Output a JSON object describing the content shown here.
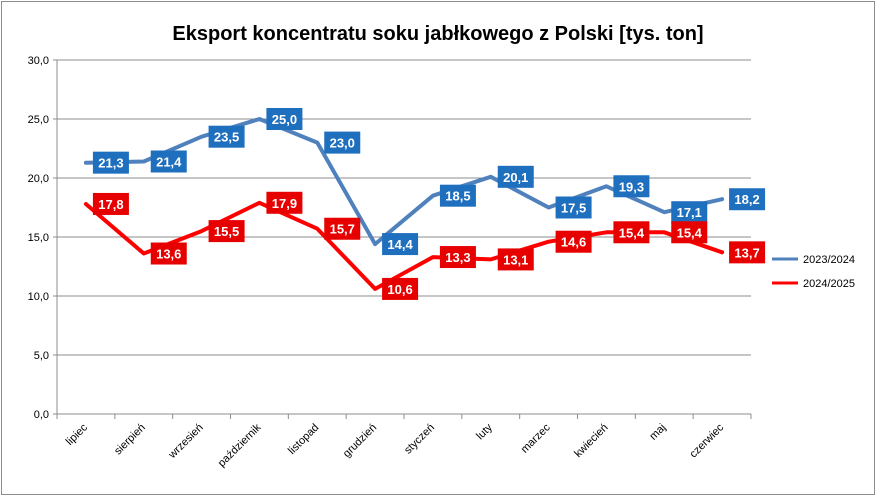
{
  "chart_data": {
    "type": "line",
    "title": "Eksport koncentratu soku jabłkowego z Polski [tys. ton]",
    "xlabel": "",
    "ylabel": "",
    "ylim": [
      0,
      30
    ],
    "yticks": [
      "0,0",
      "5,0",
      "10,0",
      "15,0",
      "20,0",
      "25,0",
      "30,0"
    ],
    "categories": [
      "lipiec",
      "sierpień",
      "wrzesień",
      "październik",
      "listopad",
      "grudzień",
      "styczeń",
      "luty",
      "marzec",
      "kwiecień",
      "maj",
      "czerwiec"
    ],
    "grid": true,
    "legend_position": "right",
    "series": [
      {
        "name": "2023/2024",
        "color": "#4f81bd",
        "label_bg": "#1f6fbf",
        "values": [
          21.3,
          21.4,
          23.5,
          25.0,
          23.0,
          14.4,
          18.5,
          20.1,
          17.5,
          19.3,
          17.1,
          18.2
        ],
        "labels": [
          "21,3",
          "21,4",
          "23,5",
          "25,0",
          "23,0",
          "14,4",
          "18,5",
          "20,1",
          "17,5",
          "19,3",
          "17,1",
          "18,2"
        ]
      },
      {
        "name": "2024/2025",
        "color": "#ff0000",
        "label_bg": "#e60000",
        "values": [
          17.8,
          13.6,
          15.5,
          17.9,
          15.7,
          10.6,
          13.3,
          13.1,
          14.6,
          15.4,
          15.4,
          13.7
        ],
        "labels": [
          "17,8",
          "13,6",
          "15,5",
          "17,9",
          "15,7",
          "10,6",
          "13,3",
          "13,1",
          "14,6",
          "15,4",
          "15,4",
          "13,7"
        ]
      }
    ]
  }
}
